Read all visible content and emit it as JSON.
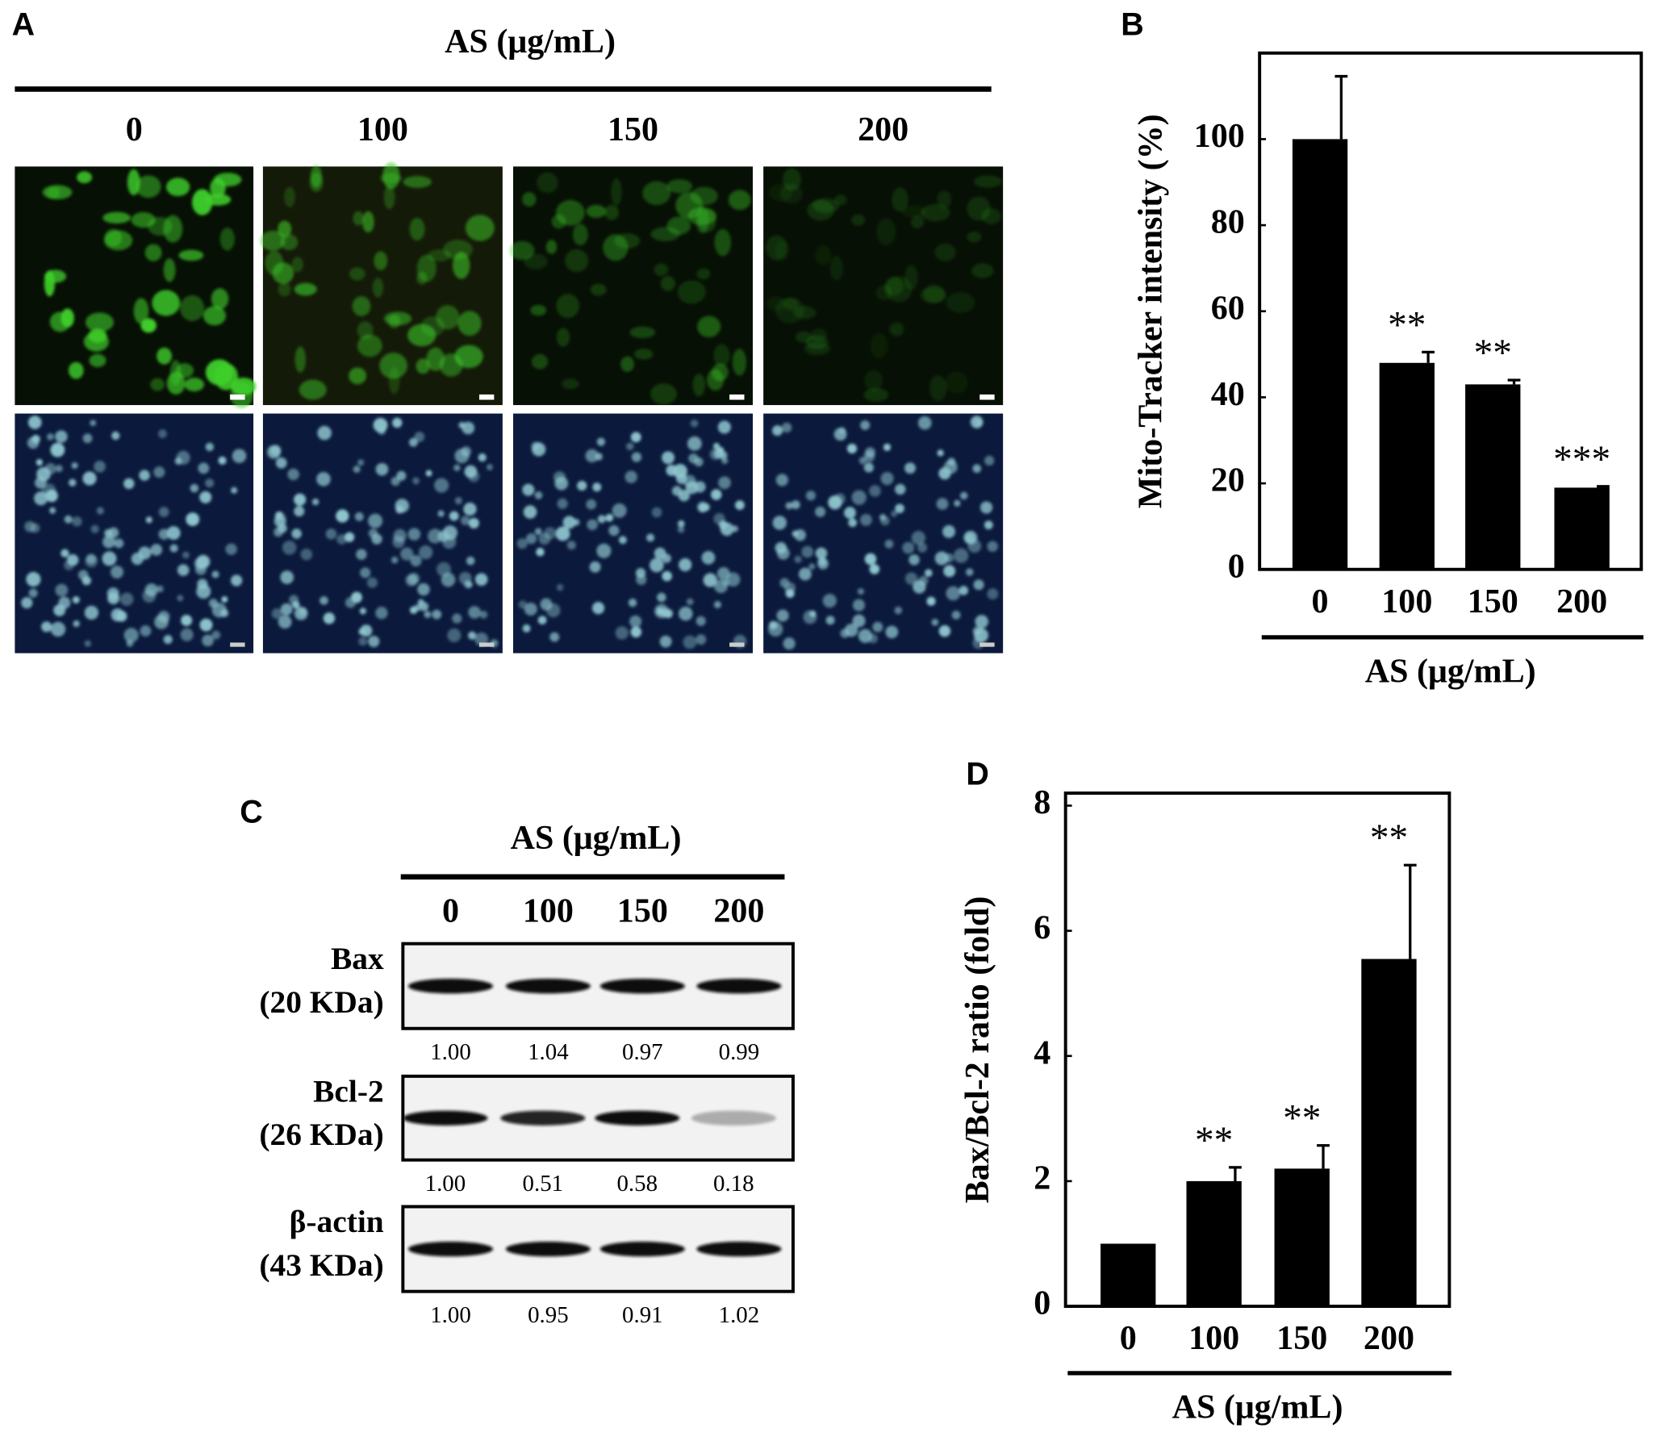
{
  "panel_a": {
    "label": "A",
    "title": "AS (μg/mL)",
    "columns": [
      "0",
      "100",
      "150",
      "200"
    ]
  },
  "panel_c": {
    "label": "C",
    "title": "AS (μg/mL)",
    "columns": [
      "0",
      "100",
      "150",
      "200"
    ],
    "rows": [
      {
        "name": "Bax",
        "size": "(20 KDa)",
        "values": [
          "1.00",
          "1.04",
          "0.97",
          "0.99"
        ]
      },
      {
        "name": "Bcl-2",
        "size": "(26 KDa)",
        "values": [
          "1.00",
          "0.51",
          "0.58",
          "0.18"
        ]
      },
      {
        "name": "β-actin",
        "size": "(43 KDa)",
        "values": [
          "1.00",
          "0.95",
          "0.91",
          "1.02"
        ]
      }
    ]
  },
  "chart_data": [
    {
      "type": "bar",
      "label": "B",
      "ylabel": "Mito-Tracker intensity (%)",
      "xlabel": "AS (μg/mL)",
      "categories": [
        "0",
        "100",
        "150",
        "200"
      ],
      "values": [
        100,
        48,
        43,
        19
      ],
      "errors": [
        14.6,
        2.5,
        1,
        0.3
      ],
      "annotations": [
        null,
        "**",
        "**",
        "***"
      ],
      "color": "#000000",
      "ylim": [
        0,
        120
      ],
      "yticks": [
        0,
        20,
        40,
        60,
        80,
        100
      ]
    },
    {
      "type": "bar",
      "label": "D",
      "ylabel": "Bax/Bcl-2 ratio (fold)",
      "xlabel": "AS (μg/mL)",
      "categories": [
        "0",
        "100",
        "150",
        "200"
      ],
      "values": [
        1,
        2,
        2.2,
        5.55
      ],
      "errors": [
        null,
        0.22,
        0.37,
        1.5
      ],
      "annotations": [
        null,
        "**",
        "**",
        "**"
      ],
      "color": "#000000",
      "ylim": [
        0,
        8.2
      ],
      "yticks": [
        0,
        2,
        4,
        6,
        8
      ]
    }
  ]
}
